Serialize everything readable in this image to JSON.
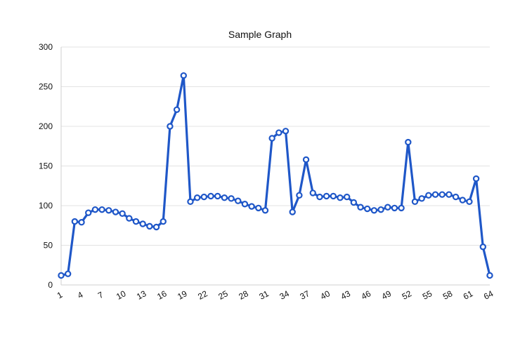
{
  "chart_data": {
    "type": "line",
    "title": "Sample Graph",
    "xlabel": "",
    "ylabel": "",
    "ylim": [
      0,
      300
    ],
    "yticks": [
      0,
      50,
      100,
      150,
      200,
      250,
      300
    ],
    "x_tick_labels": [
      "1",
      "4",
      "7",
      "10",
      "13",
      "16",
      "19",
      "22",
      "25",
      "28",
      "31",
      "34",
      "37",
      "40",
      "43",
      "46",
      "49",
      "52",
      "55",
      "58",
      "61",
      "64"
    ],
    "grid": true,
    "legend": "none",
    "color": "#1f57c8",
    "x": [
      1,
      2,
      3,
      4,
      5,
      6,
      7,
      8,
      9,
      10,
      11,
      12,
      13,
      14,
      15,
      16,
      17,
      18,
      19,
      20,
      21,
      22,
      23,
      24,
      25,
      26,
      27,
      28,
      29,
      30,
      31,
      32,
      33,
      34,
      35,
      36,
      37,
      38,
      39,
      40,
      41,
      42,
      43,
      44,
      45,
      46,
      47,
      48,
      49,
      50,
      51,
      52,
      53,
      54,
      55,
      56,
      57,
      58,
      59,
      60,
      61,
      62,
      63,
      64
    ],
    "series": [
      {
        "values": [
          12,
          14,
          80,
          79,
          91,
          95,
          95,
          94,
          92,
          90,
          84,
          80,
          77,
          74,
          73,
          80,
          200,
          221,
          264,
          105,
          110,
          111,
          112,
          112,
          110,
          109,
          106,
          102,
          99,
          97,
          94,
          185,
          192,
          194,
          92,
          113,
          158,
          116,
          111,
          112,
          112,
          110,
          111,
          104,
          98,
          96,
          94,
          95,
          98,
          97,
          97,
          180,
          105,
          109,
          113,
          114,
          114,
          114,
          111,
          107,
          105,
          134,
          48,
          12
        ]
      }
    ]
  }
}
